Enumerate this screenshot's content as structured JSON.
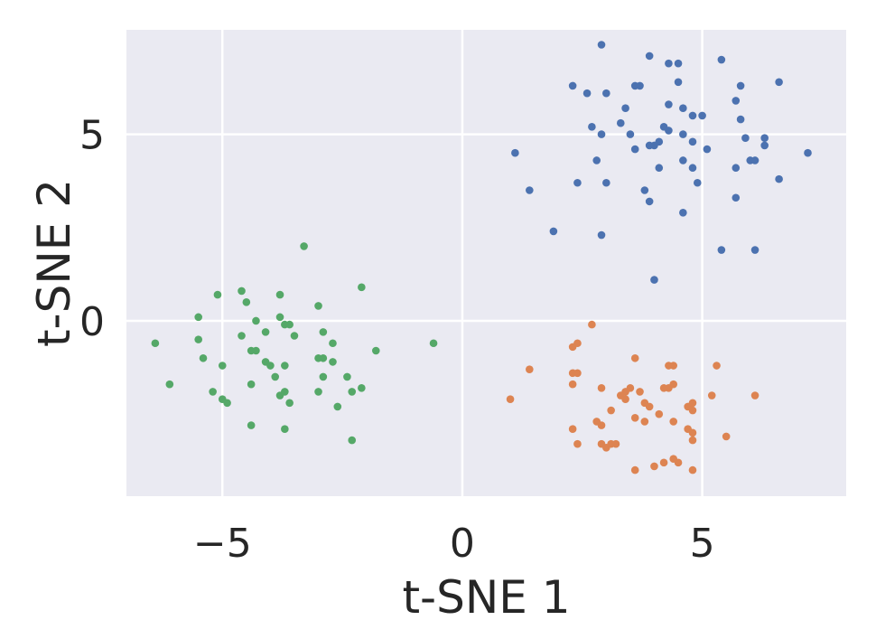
{
  "chart_data": {
    "type": "scatter",
    "title": "",
    "xlabel": "t-SNE 1",
    "ylabel": "t-SNE 2",
    "xlim": [
      -7.0,
      8.0
    ],
    "ylim": [
      -4.7,
      7.8
    ],
    "xticks": [
      {
        "value": -5,
        "label": "−5"
      },
      {
        "value": 0,
        "label": "0"
      },
      {
        "value": 5,
        "label": "5"
      }
    ],
    "yticks": [
      {
        "value": 0,
        "label": "0"
      },
      {
        "value": 5,
        "label": "5"
      }
    ],
    "grid": true,
    "background": "#eaeaf2",
    "grid_color": "#ffffff",
    "series": [
      {
        "color": "#4c72b0",
        "points": [
          [
            2.3,
            6.3
          ],
          [
            2.9,
            7.4
          ],
          [
            3.9,
            7.1
          ],
          [
            4.3,
            6.9
          ],
          [
            4.5,
            6.9
          ],
          [
            5.4,
            7.0
          ],
          [
            6.6,
            6.4
          ],
          [
            5.8,
            6.3
          ],
          [
            4.5,
            6.4
          ],
          [
            3.6,
            6.3
          ],
          [
            3.7,
            6.3
          ],
          [
            2.6,
            6.1
          ],
          [
            3.0,
            6.1
          ],
          [
            3.4,
            5.7
          ],
          [
            4.3,
            5.8
          ],
          [
            4.6,
            5.7
          ],
          [
            4.8,
            5.5
          ],
          [
            5.0,
            5.5
          ],
          [
            5.7,
            5.9
          ],
          [
            5.8,
            5.4
          ],
          [
            2.7,
            5.2
          ],
          [
            3.3,
            5.3
          ],
          [
            3.5,
            5.0
          ],
          [
            2.9,
            5.0
          ],
          [
            4.2,
            5.2
          ],
          [
            4.3,
            5.1
          ],
          [
            4.6,
            5.0
          ],
          [
            4.8,
            4.8
          ],
          [
            5.1,
            4.6
          ],
          [
            5.9,
            4.9
          ],
          [
            6.3,
            4.9
          ],
          [
            6.3,
            4.7
          ],
          [
            7.2,
            4.5
          ],
          [
            1.1,
            4.5
          ],
          [
            3.6,
            4.6
          ],
          [
            3.9,
            4.7
          ],
          [
            4.0,
            4.7
          ],
          [
            4.1,
            4.8
          ],
          [
            2.8,
            4.3
          ],
          [
            4.1,
            4.1
          ],
          [
            4.6,
            4.3
          ],
          [
            4.8,
            4.1
          ],
          [
            5.7,
            4.1
          ],
          [
            6.0,
            4.3
          ],
          [
            6.1,
            4.3
          ],
          [
            2.4,
            3.7
          ],
          [
            3.0,
            3.7
          ],
          [
            3.8,
            3.5
          ],
          [
            4.9,
            3.7
          ],
          [
            6.6,
            3.8
          ],
          [
            1.4,
            3.5
          ],
          [
            3.9,
            3.2
          ],
          [
            4.6,
            2.9
          ],
          [
            5.7,
            3.3
          ],
          [
            1.9,
            2.4
          ],
          [
            2.9,
            2.3
          ],
          [
            5.4,
            1.9
          ],
          [
            6.1,
            1.9
          ],
          [
            4.0,
            1.1
          ]
        ]
      },
      {
        "color": "#dd8452",
        "points": [
          [
            2.7,
            -0.1
          ],
          [
            2.3,
            -0.7
          ],
          [
            2.4,
            -0.6
          ],
          [
            1.4,
            -1.3
          ],
          [
            2.3,
            -1.4
          ],
          [
            2.4,
            -1.4
          ],
          [
            3.6,
            -1.0
          ],
          [
            4.3,
            -1.2
          ],
          [
            4.4,
            -1.2
          ],
          [
            5.3,
            -1.2
          ],
          [
            2.3,
            -1.7
          ],
          [
            2.9,
            -1.8
          ],
          [
            3.4,
            -1.9
          ],
          [
            3.5,
            -1.8
          ],
          [
            3.3,
            -2.0
          ],
          [
            3.4,
            -2.1
          ],
          [
            3.7,
            -1.9
          ],
          [
            3.8,
            -2.2
          ],
          [
            3.9,
            -2.3
          ],
          [
            4.2,
            -1.8
          ],
          [
            4.3,
            -1.8
          ],
          [
            4.4,
            -1.7
          ],
          [
            4.7,
            -2.3
          ],
          [
            4.8,
            -2.2
          ],
          [
            5.2,
            -2.0
          ],
          [
            6.1,
            -2.0
          ],
          [
            1.0,
            -2.1
          ],
          [
            3.1,
            -2.4
          ],
          [
            3.6,
            -2.6
          ],
          [
            4.1,
            -2.5
          ],
          [
            4.8,
            -2.4
          ],
          [
            2.3,
            -2.9
          ],
          [
            2.8,
            -2.7
          ],
          [
            2.9,
            -2.8
          ],
          [
            3.8,
            -2.7
          ],
          [
            4.4,
            -2.7
          ],
          [
            4.7,
            -2.9
          ],
          [
            4.8,
            -3.0
          ],
          [
            2.4,
            -3.3
          ],
          [
            2.9,
            -3.3
          ],
          [
            3.0,
            -3.4
          ],
          [
            3.1,
            -3.3
          ],
          [
            3.2,
            -3.3
          ],
          [
            4.8,
            -3.2
          ],
          [
            5.5,
            -3.1
          ],
          [
            4.0,
            -3.9
          ],
          [
            4.2,
            -3.8
          ],
          [
            4.4,
            -3.7
          ],
          [
            4.5,
            -3.8
          ],
          [
            3.6,
            -4.0
          ],
          [
            4.8,
            -4.0
          ]
        ]
      },
      {
        "color": "#55a868",
        "points": [
          [
            -3.3,
            2.0
          ],
          [
            -2.1,
            0.9
          ],
          [
            -4.6,
            0.8
          ],
          [
            -3.8,
            0.7
          ],
          [
            -5.1,
            0.7
          ],
          [
            -4.5,
            0.5
          ],
          [
            -3.0,
            0.4
          ],
          [
            -5.5,
            0.1
          ],
          [
            -4.3,
            0.0
          ],
          [
            -3.8,
            0.1
          ],
          [
            -3.6,
            -0.1
          ],
          [
            -3.7,
            -0.1
          ],
          [
            -2.9,
            -0.3
          ],
          [
            -4.6,
            -0.4
          ],
          [
            -4.1,
            -0.3
          ],
          [
            -5.5,
            -0.5
          ],
          [
            -3.5,
            -0.4
          ],
          [
            -6.4,
            -0.6
          ],
          [
            -0.6,
            -0.6
          ],
          [
            -2.7,
            -0.6
          ],
          [
            -4.4,
            -0.8
          ],
          [
            -4.3,
            -0.8
          ],
          [
            -1.8,
            -0.8
          ],
          [
            -5.4,
            -1.0
          ],
          [
            -3.0,
            -1.0
          ],
          [
            -2.9,
            -1.0
          ],
          [
            -2.7,
            -1.1
          ],
          [
            -4.1,
            -1.1
          ],
          [
            -4.0,
            -1.2
          ],
          [
            -3.7,
            -1.2
          ],
          [
            -5.0,
            -1.2
          ],
          [
            -2.9,
            -1.5
          ],
          [
            -3.9,
            -1.5
          ],
          [
            -2.4,
            -1.5
          ],
          [
            -6.1,
            -1.7
          ],
          [
            -4.4,
            -1.7
          ],
          [
            -2.1,
            -1.8
          ],
          [
            -3.0,
            -1.9
          ],
          [
            -3.7,
            -1.9
          ],
          [
            -3.8,
            -2.0
          ],
          [
            -2.3,
            -1.9
          ],
          [
            -5.2,
            -1.9
          ],
          [
            -3.6,
            -2.2
          ],
          [
            -5.0,
            -2.1
          ],
          [
            -4.9,
            -2.2
          ],
          [
            -2.6,
            -2.3
          ],
          [
            -4.4,
            -2.8
          ],
          [
            -3.7,
            -2.9
          ],
          [
            -2.3,
            -3.2
          ]
        ]
      }
    ]
  }
}
